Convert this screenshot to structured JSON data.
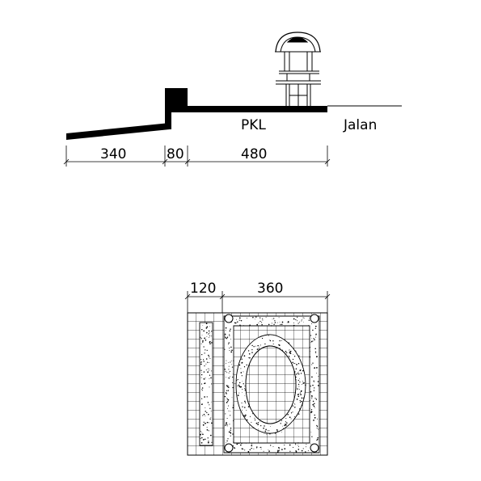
{
  "section": {
    "label_pkl": "PKL",
    "label_jalan": "Jalan",
    "dimensions": [
      "340",
      "80",
      "480"
    ]
  },
  "plan": {
    "dimensions": [
      "120",
      "360"
    ]
  }
}
